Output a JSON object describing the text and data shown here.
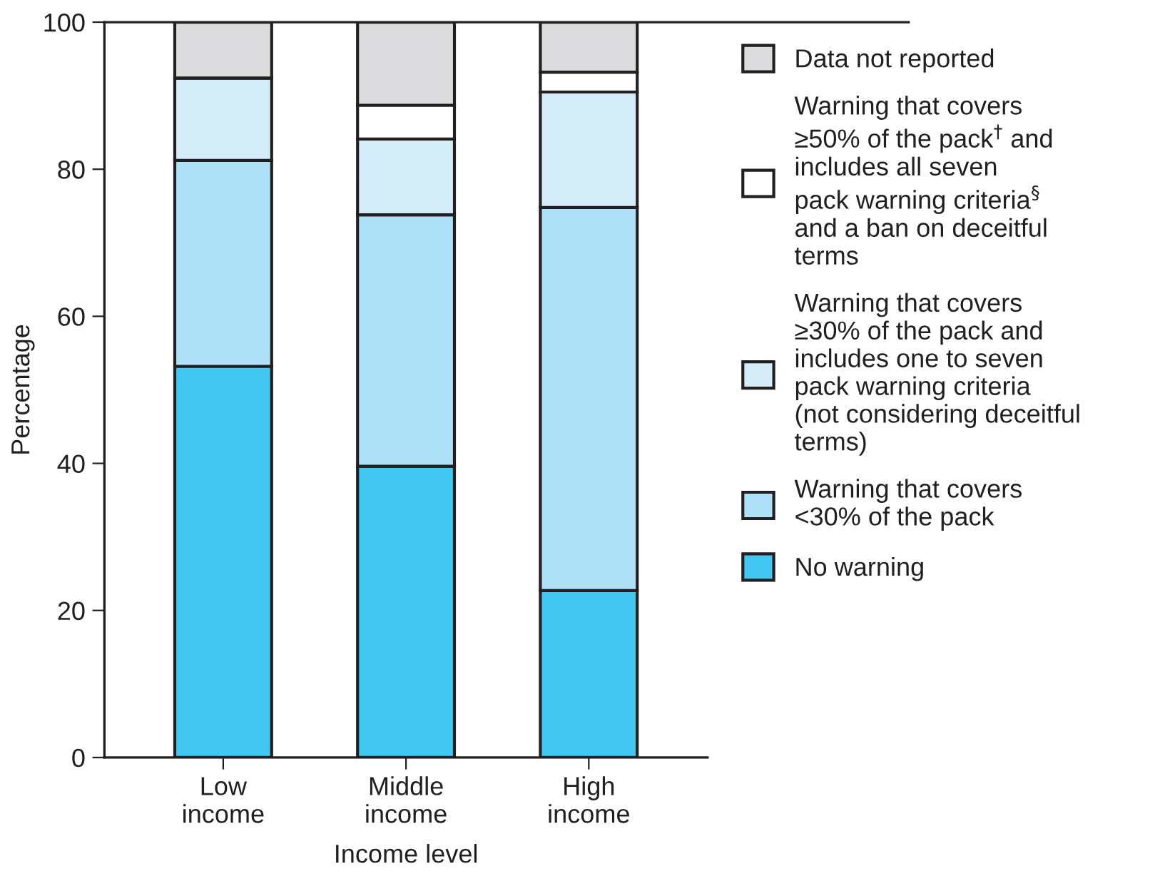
{
  "chart_data": {
    "type": "bar",
    "stacked": true,
    "xlabel": "Income level",
    "ylabel": "Percentage",
    "categories": [
      "Low\nincome",
      "Middle\nincome",
      "High\nincome"
    ],
    "series": [
      {
        "name": "No warning",
        "color": "#42c6f2",
        "values": [
          53.2,
          39.6,
          22.7
        ]
      },
      {
        "name": "Warning that covers\n<30% of the pack",
        "color": "#aee0f8",
        "values": [
          28.0,
          34.2,
          52.1
        ]
      },
      {
        "name": "Warning that covers\n≥30% of the pack and\nincludes one to seven\npack warning criteria\n(not considering deceitful\nterms)",
        "color": "#d5ecf9",
        "values": [
          11.2,
          10.3,
          15.7
        ]
      },
      {
        "name": "Warning that covers\n≥50% of the pack$^{†}$ and\nincludes all seven\npack warning criteria$^{§}$\nand a ban on deceitful\nterms",
        "color": "#ffffff",
        "values": [
          0,
          4.6,
          2.7
        ]
      },
      {
        "name": "Data not reported",
        "color": "#dcdcde",
        "values": [
          7.6,
          11.3,
          6.8
        ]
      }
    ],
    "ylim": [
      0,
      100
    ],
    "yticks": [
      0,
      20,
      40,
      60,
      80,
      100
    ],
    "grid": false,
    "legend": "right"
  }
}
